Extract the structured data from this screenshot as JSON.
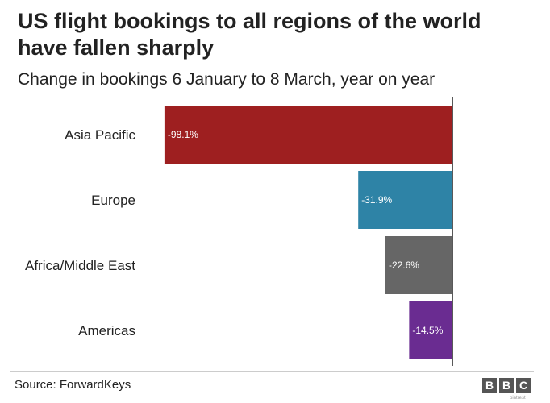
{
  "chart_data": {
    "type": "bar",
    "orientation": "horizontal",
    "title": "US flight bookings to all regions of the world have fallen sharply",
    "subtitle": "Change in bookings 6 January to 8 March, year on year",
    "categories": [
      "Asia Pacific",
      "Europe",
      "Africa/Middle East",
      "Americas"
    ],
    "values": [
      -98.1,
      -31.9,
      -22.6,
      -14.5
    ],
    "value_labels": [
      "-98.1%",
      "-31.9%",
      "-22.6%",
      "-14.5%"
    ],
    "colors": [
      "#9e1f20",
      "#2e83a6",
      "#666666",
      "#6a2c91"
    ],
    "xlim": [
      -100,
      0
    ],
    "xlabel": "",
    "ylabel": "",
    "grid": false
  },
  "footer": {
    "source": "Source: ForwardKeys",
    "logo": [
      "B",
      "B",
      "C"
    ],
    "credit": "pintrest"
  }
}
